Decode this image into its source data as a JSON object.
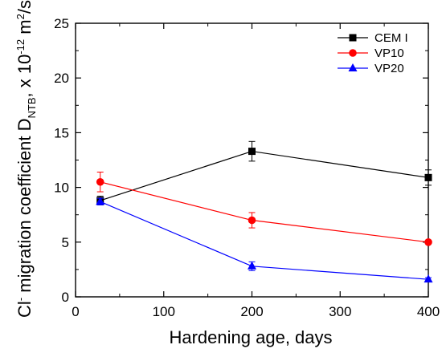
{
  "chart_data": {
    "type": "line",
    "xlabel": "Hardening age, days",
    "ylabel": {
      "prefix": "Cl",
      "sup1": "-",
      "main": " migration coefficient D",
      "sub": "NTB",
      "unit": ", x 10",
      "exp": "-12",
      "unit2": " m",
      "sup2": "2",
      "tail": "/s"
    },
    "xlim": [
      0,
      400
    ],
    "ylim": [
      0,
      25
    ],
    "xticks": [
      0,
      100,
      200,
      300,
      400
    ],
    "yticks": [
      0,
      5,
      10,
      15,
      20,
      25
    ],
    "grid": false,
    "legend_position": "top-right",
    "series": [
      {
        "name": "CEM I",
        "color": "#000000",
        "marker": "square",
        "x": [
          28,
          200,
          400
        ],
        "y": [
          8.8,
          13.3,
          10.9
        ],
        "err": [
          0.4,
          0.9,
          0.7
        ]
      },
      {
        "name": "VP10",
        "color": "#ff0000",
        "marker": "circle",
        "x": [
          28,
          200,
          400
        ],
        "y": [
          10.5,
          7.0,
          5.0
        ],
        "err": [
          0.9,
          0.7,
          0.15
        ]
      },
      {
        "name": "VP20",
        "color": "#0000ff",
        "marker": "triangle",
        "x": [
          28,
          200,
          400
        ],
        "y": [
          8.7,
          2.8,
          1.6
        ],
        "err": [
          0.3,
          0.4,
          0.15
        ]
      }
    ]
  }
}
